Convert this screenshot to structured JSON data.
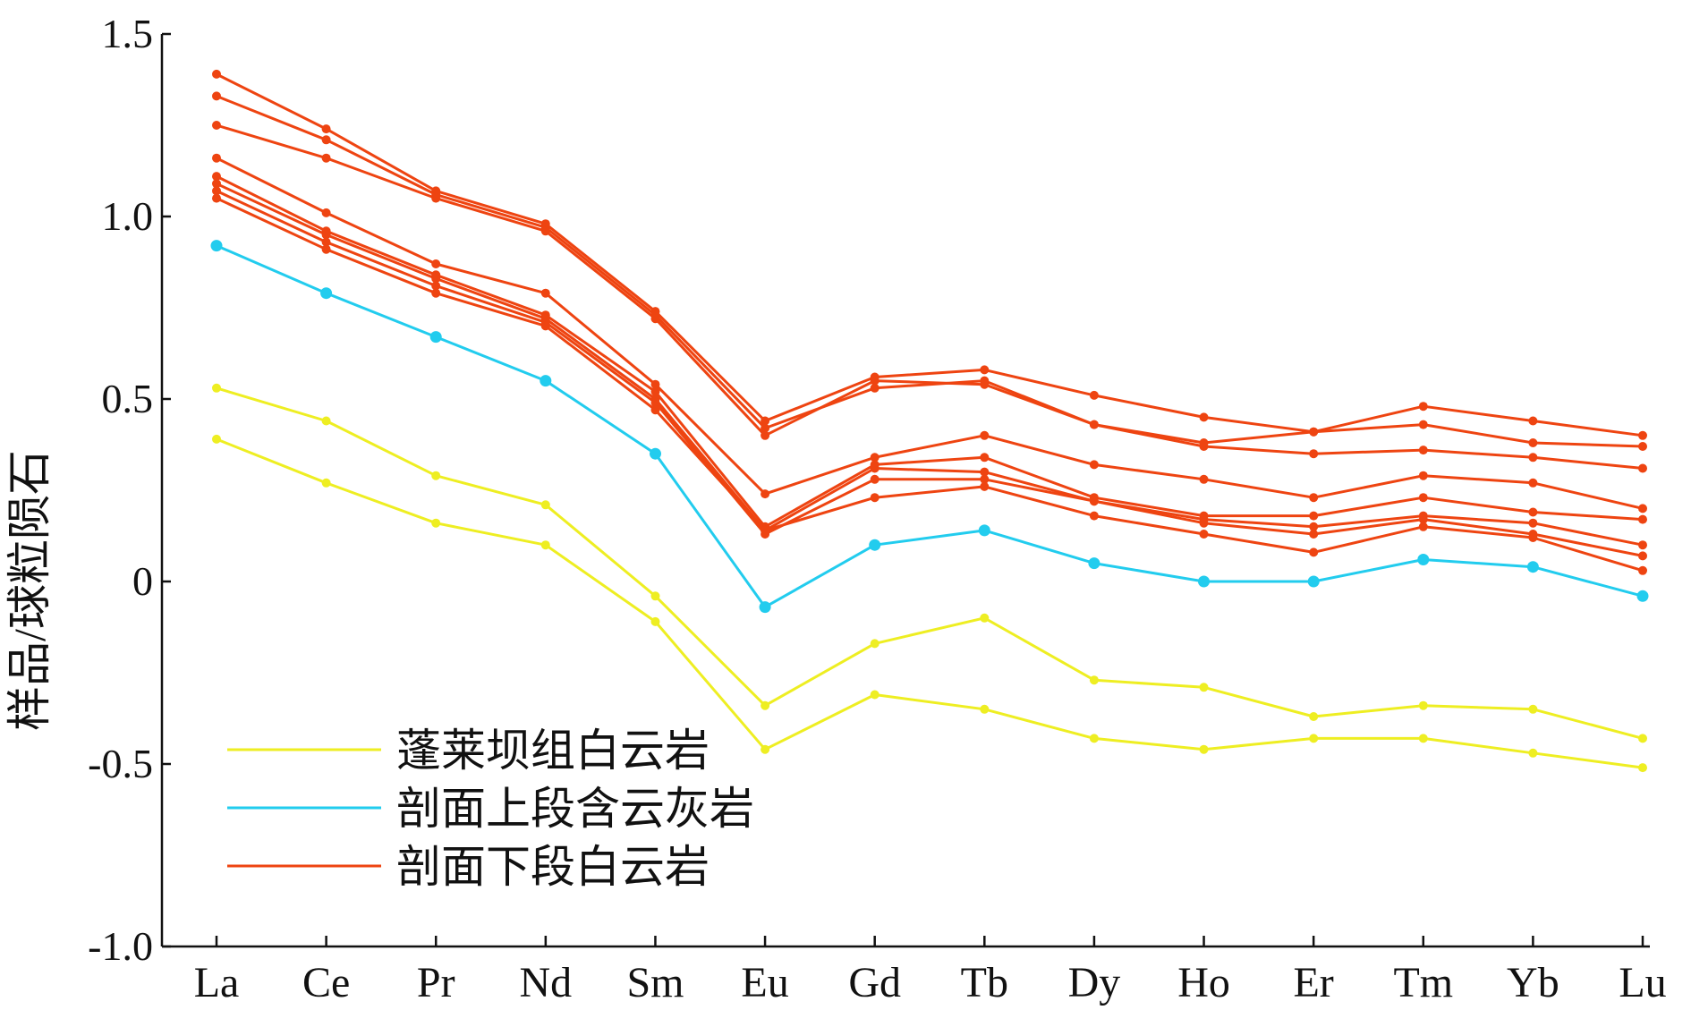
{
  "chart_data": {
    "type": "line",
    "title": "",
    "xlabel": "",
    "ylabel": "样品/球粒陨石",
    "categories": [
      "La",
      "Ce",
      "Pr",
      "Nd",
      "Sm",
      "Eu",
      "Gd",
      "Tb",
      "Dy",
      "Ho",
      "Er",
      "Tm",
      "Yb",
      "Lu"
    ],
    "ylim": [
      -1.0,
      1.5
    ],
    "yticks": [
      {
        "value": 1.5,
        "label": "1.5"
      },
      {
        "value": 1.0,
        "label": "1.0"
      },
      {
        "value": 0.5,
        "label": "0.5"
      },
      {
        "value": 0,
        "label": "0"
      },
      {
        "value": -0.5,
        "label": "-0.5"
      },
      {
        "value": -1.0,
        "label": "-1.0"
      }
    ],
    "grid": false,
    "legend_position": "bottom-left",
    "groups": [
      {
        "name": "蓬莱坝组白云岩",
        "color": "#eeee22"
      },
      {
        "name": "剖面上段含云灰岩",
        "color": "#22ccee"
      },
      {
        "name": "剖面下段白云岩",
        "color": "#ee4411"
      }
    ],
    "series": [
      {
        "group": 0,
        "values": [
          0.53,
          0.44,
          0.29,
          0.21,
          -0.04,
          -0.34,
          -0.17,
          -0.1,
          -0.27,
          -0.29,
          -0.37,
          -0.34,
          -0.35,
          -0.43
        ]
      },
      {
        "group": 0,
        "values": [
          0.39,
          0.27,
          0.16,
          0.1,
          -0.11,
          -0.46,
          -0.31,
          -0.35,
          -0.43,
          -0.46,
          -0.43,
          -0.43,
          -0.47,
          -0.51
        ]
      },
      {
        "group": 1,
        "values": [
          0.92,
          0.79,
          0.67,
          0.55,
          0.35,
          -0.07,
          0.1,
          0.14,
          0.05,
          0.0,
          0.0,
          0.06,
          0.04,
          -0.04
        ]
      },
      {
        "group": 2,
        "values": [
          1.39,
          1.24,
          1.07,
          0.98,
          0.74,
          0.44,
          0.56,
          0.58,
          0.51,
          0.45,
          0.41,
          0.48,
          0.44,
          0.4
        ]
      },
      {
        "group": 2,
        "values": [
          1.33,
          1.21,
          1.06,
          0.97,
          0.73,
          0.42,
          0.53,
          0.55,
          0.43,
          0.38,
          0.41,
          0.43,
          0.38,
          0.37
        ]
      },
      {
        "group": 2,
        "values": [
          1.25,
          1.16,
          1.05,
          0.96,
          0.72,
          0.4,
          0.55,
          0.54,
          0.43,
          0.37,
          0.35,
          0.36,
          0.34,
          0.31
        ]
      },
      {
        "group": 2,
        "values": [
          1.16,
          1.01,
          0.87,
          0.79,
          0.54,
          0.24,
          0.34,
          0.4,
          0.32,
          0.28,
          0.23,
          0.29,
          0.27,
          0.2
        ]
      },
      {
        "group": 2,
        "values": [
          1.11,
          0.96,
          0.84,
          0.73,
          0.52,
          0.15,
          0.32,
          0.34,
          0.23,
          0.18,
          0.18,
          0.23,
          0.19,
          0.17
        ]
      },
      {
        "group": 2,
        "values": [
          1.09,
          0.95,
          0.83,
          0.72,
          0.5,
          0.14,
          0.31,
          0.3,
          0.22,
          0.17,
          0.15,
          0.18,
          0.16,
          0.1
        ]
      },
      {
        "group": 2,
        "values": [
          1.07,
          0.93,
          0.81,
          0.71,
          0.49,
          0.13,
          0.28,
          0.28,
          0.22,
          0.16,
          0.13,
          0.17,
          0.13,
          0.07
        ]
      },
      {
        "group": 2,
        "values": [
          1.05,
          0.91,
          0.79,
          0.7,
          0.47,
          0.14,
          0.23,
          0.26,
          0.18,
          0.13,
          0.08,
          0.15,
          0.12,
          0.03
        ]
      }
    ]
  }
}
